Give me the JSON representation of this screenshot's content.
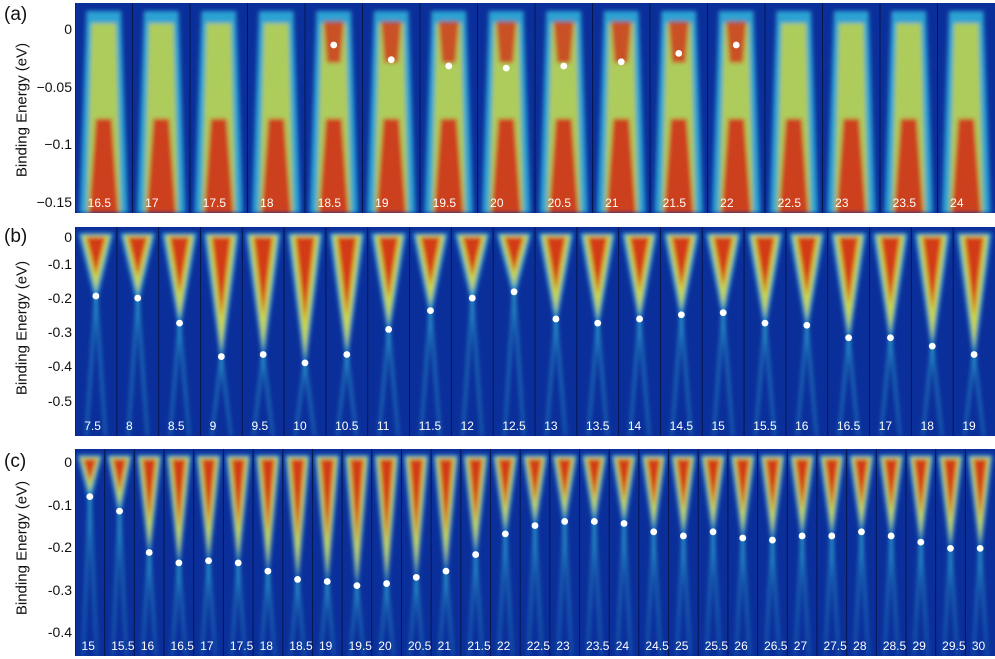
{
  "panels": [
    {
      "letter": "(a)",
      "ylabel": "Binding Energy (eV)",
      "ticks": [
        "0",
        "−0.05",
        "−0.1",
        "−0.15"
      ],
      "labels": [
        "16.5",
        "17",
        "17.5",
        "18",
        "18.5",
        "19",
        "19.5",
        "20",
        "20.5",
        "21",
        "21.5",
        "22",
        "22.5",
        "23",
        "23.5",
        "24"
      ]
    },
    {
      "letter": "(b)",
      "ylabel": "Binding Energy (eV)",
      "ticks": [
        "0",
        "-0.1",
        "-0.2",
        "-0.3",
        "-0.4",
        "-0.5"
      ],
      "labels": [
        "7.5",
        "8",
        "8.5",
        "9",
        "9.5",
        "10",
        "10.5",
        "11",
        "11.5",
        "12",
        "12.5",
        "13",
        "13.5",
        "14",
        "14.5",
        "15",
        "15.5",
        "16",
        "16.5",
        "17",
        "18",
        "19"
      ]
    },
    {
      "letter": "(c)",
      "ylabel": "Binding Energy (eV)",
      "ticks": [
        "0",
        "-0.1",
        "-0.2",
        "-0.3",
        "-0.4"
      ],
      "labels": [
        "15",
        "15.5",
        "16",
        "16.5",
        "17",
        "17.5",
        "18",
        "18.5",
        "19",
        "19.5",
        "20",
        "20.5",
        "21",
        "21.5",
        "22",
        "22.5",
        "23",
        "23.5",
        "24",
        "24.5",
        "25",
        "25.5",
        "26",
        "26.5",
        "27",
        "27.5",
        "28",
        "28.5",
        "29",
        "29.5",
        "30"
      ]
    }
  ],
  "colors": {
    "background_blue": "#0b2f9a",
    "cyan": "#35c8e6",
    "yellow": "#f2e31e",
    "red": "#d51d0f",
    "dot": "#ffffff"
  }
}
